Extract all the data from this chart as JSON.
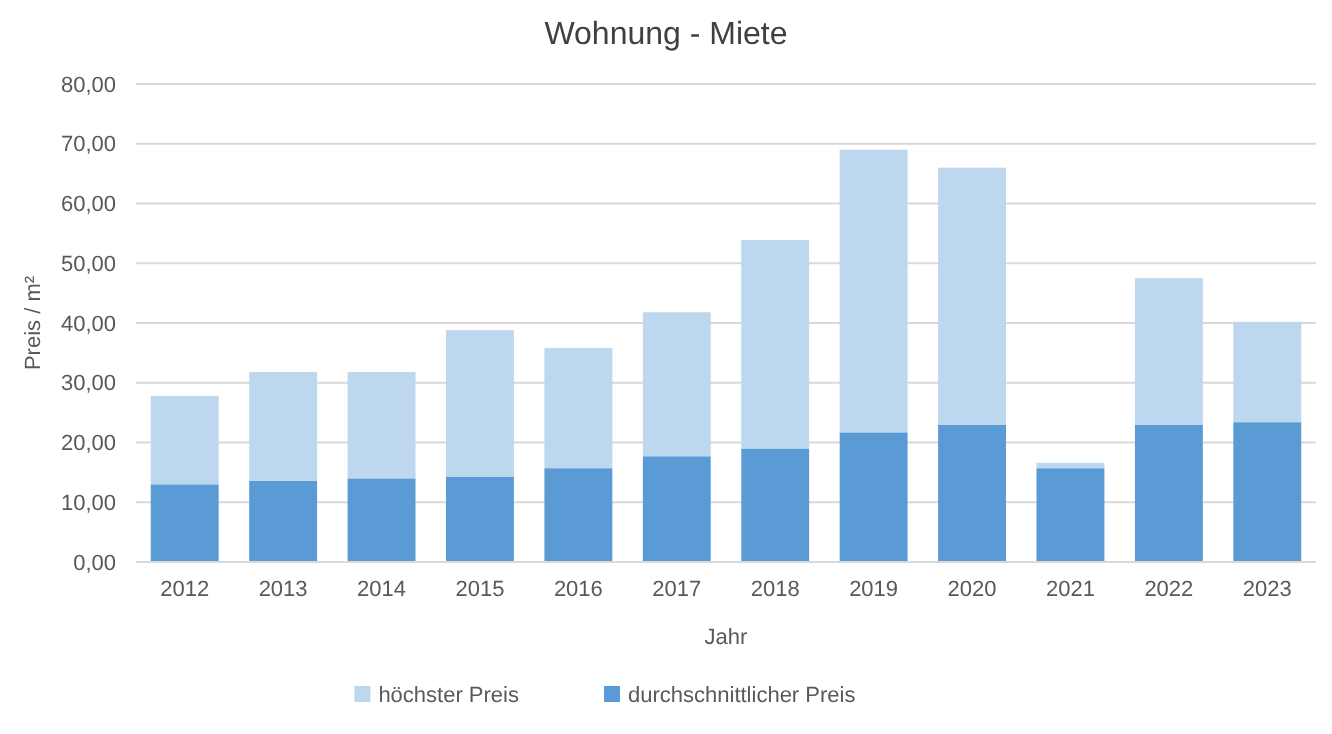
{
  "chart_data": {
    "type": "bar",
    "title": "Wohnung - Miete",
    "xlabel": "Jahr",
    "ylabel": "Preis / m²",
    "categories": [
      "2012",
      "2013",
      "2014",
      "2015",
      "2016",
      "2017",
      "2018",
      "2019",
      "2020",
      "2021",
      "2022",
      "2023"
    ],
    "stacked": true,
    "series": [
      {
        "name": "durchschnittlicher Preis",
        "color": "#5b9bd5",
        "values": [
          13.0,
          13.6,
          14.0,
          14.3,
          15.7,
          17.7,
          19.0,
          21.7,
          23.0,
          15.7,
          23.0,
          23.4
        ]
      },
      {
        "name": "höchster Preis",
        "color": "#bdd7ee",
        "values": [
          14.8,
          18.2,
          17.8,
          24.5,
          20.1,
          24.1,
          34.9,
          47.3,
          43.0,
          0.9,
          24.5,
          16.8
        ]
      }
    ],
    "ylim": [
      0,
      80
    ],
    "yticks": [
      {
        "value": 0,
        "label": "0,00"
      },
      {
        "value": 10,
        "label": "10,00"
      },
      {
        "value": 20,
        "label": "20,00"
      },
      {
        "value": 30,
        "label": "30,00"
      },
      {
        "value": 40,
        "label": "40,00"
      },
      {
        "value": 50,
        "label": "50,00"
      },
      {
        "value": 60,
        "label": "60,00"
      },
      {
        "value": 70,
        "label": "70,00"
      },
      {
        "value": 80,
        "label": "80,00"
      }
    ],
    "grid": "y",
    "legend": "bottom"
  }
}
